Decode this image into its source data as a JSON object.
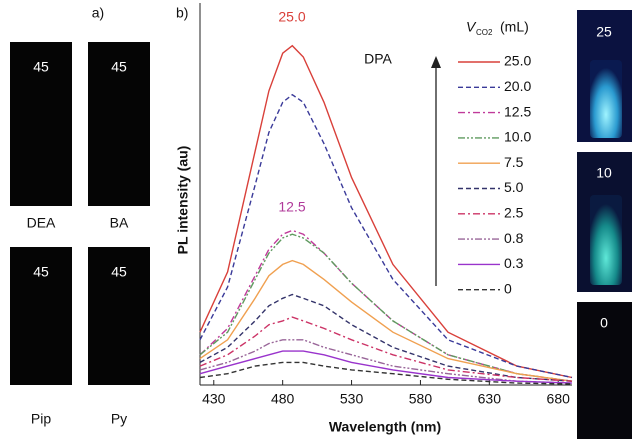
{
  "panel_a": {
    "label": "a)",
    "samples": [
      {
        "name": "DEA",
        "value": 45
      },
      {
        "name": "BA",
        "value": 45
      },
      {
        "name": "Pip",
        "value": 45
      },
      {
        "name": "Py",
        "value": 45
      }
    ]
  },
  "chart_data": {
    "type": "line",
    "panel_label": "b)",
    "x_label": "Wavelength (nm)",
    "y_label": "PL intensity (au)",
    "legend_title": {
      "main": "V",
      "sub": "CO2",
      "unit": "(mL)"
    },
    "annotations": [
      {
        "text": "25.0",
        "color": "#d9403a"
      },
      {
        "text": "12.5",
        "color": "#b03a9a"
      },
      {
        "text": "DPA",
        "color": "#111111"
      }
    ],
    "x": [
      420,
      440,
      460,
      470,
      480,
      487,
      495,
      510,
      530,
      560,
      600,
      650,
      690
    ],
    "xlim": [
      420,
      690
    ],
    "xticks": [
      430,
      480,
      530,
      580,
      630,
      680
    ],
    "ylim": [
      0,
      100
    ],
    "series": [
      {
        "name": "25.0",
        "color": "#d9403a",
        "dash": "solid",
        "values": [
          14,
          30,
          62,
          78,
          88,
          90,
          87,
          75,
          55,
          32,
          14,
          5,
          2
        ]
      },
      {
        "name": "20.0",
        "color": "#3a3a99",
        "dash": "dash",
        "values": [
          12,
          26,
          53,
          67,
          75,
          77,
          75,
          64,
          47,
          28,
          12,
          5,
          2
        ]
      },
      {
        "name": "12.5",
        "color": "#c03a9a",
        "dash": "dashdot",
        "values": [
          8,
          15,
          29,
          36,
          40,
          41,
          40,
          35,
          27,
          17,
          8,
          3,
          1
        ]
      },
      {
        "name": "10.0",
        "color": "#5f9a5f",
        "dash": "dashdotdot",
        "values": [
          8,
          14,
          28,
          35,
          39,
          40,
          39,
          35,
          27,
          17,
          8,
          3,
          1
        ]
      },
      {
        "name": "7.5",
        "color": "#f0a050",
        "dash": "solid",
        "values": [
          7,
          12,
          23,
          29,
          32,
          33,
          32,
          28,
          22,
          14,
          7,
          3,
          1
        ]
      },
      {
        "name": "5.0",
        "color": "#33336a",
        "dash": "dash",
        "values": [
          6,
          10,
          17,
          21,
          23,
          24,
          23,
          21,
          16,
          10,
          5,
          2,
          1
        ]
      },
      {
        "name": "2.5",
        "color": "#cc3366",
        "dash": "dashdot",
        "values": [
          5,
          8,
          13,
          16,
          17,
          18,
          17,
          15,
          12,
          8,
          4,
          2,
          1
        ]
      },
      {
        "name": "0.8",
        "color": "#996699",
        "dash": "dashdotdot",
        "values": [
          4,
          6,
          9,
          11,
          12,
          12,
          12,
          10,
          8,
          5,
          3,
          1,
          0.5
        ]
      },
      {
        "name": "0.3",
        "color": "#9933cc",
        "dash": "solid",
        "values": [
          3,
          5,
          7,
          8,
          9,
          9,
          9,
          8,
          6,
          4,
          2,
          1,
          0.5
        ]
      },
      {
        "name": "0",
        "color": "#333333",
        "dash": "dash",
        "values": [
          2,
          3,
          5,
          5.5,
          6,
          6,
          6,
          5,
          4,
          3,
          1.5,
          0.5,
          0.3
        ]
      }
    ]
  },
  "panel_c": {
    "vials": [
      25,
      10,
      0
    ]
  }
}
